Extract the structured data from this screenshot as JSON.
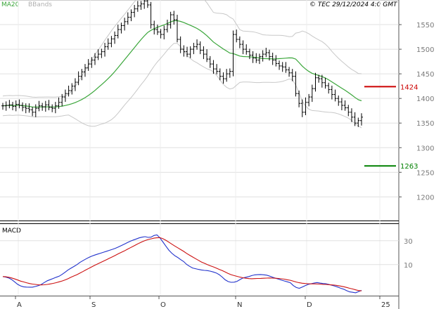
{
  "header": {
    "legend_ma": "MA20",
    "legend_bb": "BBands",
    "copyright": "© TEC 29/12/2024 4:0 GMT"
  },
  "macd_panel": {
    "title": "MACD"
  },
  "colors": {
    "ma": "#3aa63a",
    "bb": "#c8c8c8",
    "bars": "#000000",
    "resistance": "#cc0000",
    "support": "#008000",
    "macd_line": "#2233cc",
    "signal_line": "#cc1111",
    "grid": "#e0e0e0"
  },
  "chart_data": [
    {
      "type": "ohlc",
      "x_labels": [
        "A",
        "S",
        "O",
        "N",
        "D",
        "25"
      ],
      "y_ticks": [
        1200,
        1250,
        1300,
        1350,
        1400,
        1450,
        1500,
        1550
      ],
      "y_tick_labels": [
        "1200",
        "1250",
        "1300",
        "1350",
        "1400",
        "1450",
        "1500",
        "1550"
      ],
      "ylim": [
        1152,
        1600
      ],
      "grid": true,
      "closes": [
        1385,
        1386,
        1387,
        1384,
        1388,
        1386,
        1382,
        1380,
        1377,
        1372,
        1380,
        1385,
        1383,
        1387,
        1382,
        1380,
        1385,
        1392,
        1403,
        1410,
        1416,
        1425,
        1433,
        1445,
        1454,
        1462,
        1470,
        1478,
        1484,
        1490,
        1495,
        1505,
        1512,
        1521,
        1528,
        1540,
        1548,
        1556,
        1565,
        1575,
        1582,
        1588,
        1592,
        1598,
        1590,
        1550,
        1540,
        1535,
        1530,
        1540,
        1550,
        1570,
        1560,
        1520,
        1500,
        1495,
        1490,
        1500,
        1505,
        1510,
        1498,
        1490,
        1480,
        1470,
        1460,
        1455,
        1445,
        1440,
        1450,
        1455,
        1530,
        1520,
        1510,
        1500,
        1495,
        1488,
        1482,
        1478,
        1485,
        1490,
        1493,
        1485,
        1478,
        1471,
        1466,
        1464,
        1458,
        1452,
        1445,
        1410,
        1390,
        1372,
        1392,
        1403,
        1420,
        1442,
        1440,
        1432,
        1426,
        1418,
        1408,
        1400,
        1393,
        1386,
        1381,
        1372,
        1362,
        1350,
        1355,
        1362
      ],
      "legend": [
        "MA20",
        "BBands"
      ],
      "levels": [
        {
          "value": 1424,
          "label": "1424",
          "kind": "resistance"
        },
        {
          "value": 1263,
          "label": "1263",
          "kind": "support"
        }
      ]
    },
    {
      "type": "line",
      "title": "MACD",
      "y_ticks": [
        10,
        30
      ],
      "y_tick_labels": [
        "10",
        "30"
      ],
      "ylim": [
        -16,
        44
      ],
      "series": [
        {
          "name": "MACD",
          "values": [
            0,
            -0.5,
            -1.2,
            -2.5,
            -4.5,
            -6.5,
            -7.8,
            -8.6,
            -8.8,
            -8.9,
            -8.9,
            -8.3,
            -7.6,
            -6.6,
            -5.0,
            -3.5,
            -2.6,
            -1.6,
            -0.6,
            0.3,
            1.8,
            3.6,
            5.5,
            7.0,
            8.5,
            10.0,
            11.8,
            13.3,
            14.7,
            16.0,
            17.1,
            18.0,
            18.8,
            19.6,
            20.4,
            21.2,
            22.0,
            22.8,
            23.7,
            24.8,
            26.0,
            27.2,
            28.4,
            29.6,
            30.6,
            31.5,
            32.4,
            33.0,
            33.4,
            32.8,
            33.0,
            34.4,
            34.9,
            32.4,
            29.0,
            25.5,
            22.2,
            19.6,
            17.5,
            16.0,
            14.2,
            12.6,
            10.2,
            8.6,
            7.2,
            6.6,
            6.0,
            5.5,
            5.2,
            5.0,
            4.5,
            3.8,
            3.0,
            1.6,
            -0.4,
            -2.7,
            -4.2,
            -4.8,
            -4.7,
            -4.0,
            -2.5,
            -1.2,
            -0.6,
            0.0,
            0.8,
            1.4,
            1.6,
            1.7,
            1.5,
            1.2,
            0.4,
            -0.6,
            -1.4,
            -2.2,
            -3.0,
            -3.7,
            -4.4,
            -5.2,
            -7.6,
            -9.2,
            -9.8,
            -8.8,
            -7.6,
            -6.6,
            -6.0,
            -5.4,
            -5.0,
            -5.5,
            -5.8,
            -6.0,
            -6.6,
            -7.3,
            -8.0,
            -8.8,
            -9.8,
            -10.6,
            -11.8,
            -12.8,
            -13.2,
            -13.6,
            -12.6,
            -11.5
          ]
        },
        {
          "name": "Signal",
          "values": [
            0,
            -0.2,
            -0.6,
            -1.2,
            -2.0,
            -2.9,
            -3.8,
            -4.5,
            -5.2,
            -5.8,
            -6.3,
            -6.6,
            -6.9,
            -7.0,
            -6.9,
            -6.6,
            -6.2,
            -5.7,
            -5.1,
            -4.4,
            -3.7,
            -2.8,
            -1.8,
            -0.6,
            0.5,
            1.6,
            2.9,
            4.2,
            5.5,
            6.8,
            8.1,
            9.4,
            10.6,
            11.8,
            13.0,
            14.2,
            15.4,
            16.6,
            17.8,
            19.1,
            20.3,
            21.5,
            22.8,
            24.1,
            25.4,
            26.7,
            28.0,
            29.2,
            30.2,
            31.0,
            31.6,
            32.2,
            32.5,
            32.6,
            31.7,
            30.4,
            28.8,
            27.2,
            25.6,
            24.1,
            22.6,
            21.1,
            19.4,
            17.9,
            16.4,
            15.0,
            13.6,
            12.2,
            11.1,
            10.0,
            9.0,
            8.1,
            7.1,
            6.0,
            5.0,
            3.8,
            2.6,
            1.6,
            0.8,
            0.2,
            -0.5,
            -1.0,
            -1.4,
            -1.7,
            -1.8,
            -1.7,
            -1.6,
            -1.5,
            -1.4,
            -1.3,
            -1.2,
            -1.3,
            -1.4,
            -1.6,
            -1.9,
            -2.2,
            -2.7,
            -3.1,
            -3.9,
            -4.6,
            -5.2,
            -5.6,
            -5.8,
            -6.0,
            -6.1,
            -6.1,
            -6.2,
            -6.3,
            -6.5,
            -6.6,
            -6.8,
            -7.0,
            -7.2,
            -7.6,
            -8.0,
            -8.5,
            -9.1,
            -9.8,
            -10.4,
            -11.1,
            -11.7,
            -12.0
          ]
        }
      ]
    }
  ]
}
